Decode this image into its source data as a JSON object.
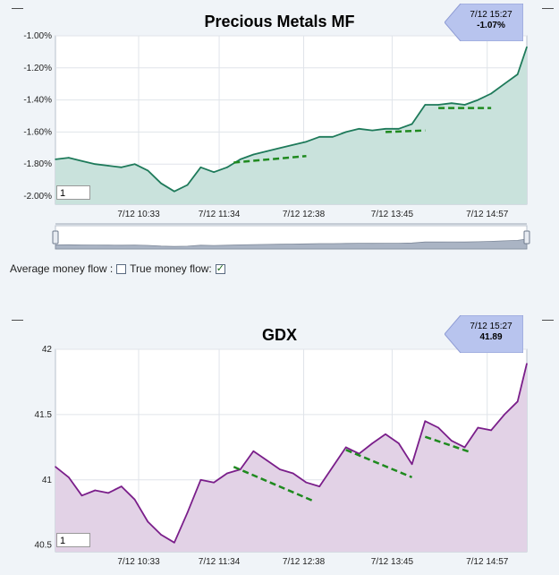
{
  "panel1": {
    "minimize_label": "—",
    "maximize_label": "—",
    "title": "Precious Metals MF",
    "callout_time": "7/12 15:27",
    "callout_value": "-1.07%",
    "zoom_value": "1"
  },
  "panel2": {
    "minimize_label": "—",
    "maximize_label": "—",
    "title": "GDX",
    "callout_time": "7/12 15:27",
    "callout_value": "41.89",
    "zoom_value": "1"
  },
  "flow_options": {
    "average_label": "Average money flow :",
    "average_checked": false,
    "true_label": "True money flow:",
    "true_checked": true
  },
  "colors": {
    "mf_line": "#1e7a5a",
    "mf_fill": "#c9e2dc",
    "gdx_line": "#7a1e8a",
    "gdx_fill": "#e2d2e6",
    "trend": "#1f8a1f",
    "callout": "#b8c4ee"
  },
  "chart_data": [
    {
      "type": "area",
      "title": "Precious Metals MF",
      "x_ticks": [
        "7/12 10:33",
        "7/12 11:34",
        "7/12 12:38",
        "7/12 13:45",
        "7/12 14:57"
      ],
      "y_ticks": [
        "-1.00%",
        "-1.20%",
        "-1.40%",
        "-1.60%",
        "-1.80%",
        "-2.00%"
      ],
      "ylim": [
        -2.05,
        -1.0
      ],
      "x_range": [
        "9:30",
        "15:27"
      ],
      "grid": true,
      "series": [
        {
          "x": [
            "9:30",
            "9:40",
            "9:50",
            "10:00",
            "10:10",
            "10:20",
            "10:30",
            "10:40",
            "10:50",
            "11:00",
            "11:10",
            "11:20",
            "11:30",
            "11:40",
            "11:50",
            "12:00",
            "12:10",
            "12:20",
            "12:30",
            "12:40",
            "12:50",
            "13:00",
            "13:10",
            "13:20",
            "13:30",
            "13:40",
            "13:50",
            "14:00",
            "14:10",
            "14:20",
            "14:30",
            "14:40",
            "14:50",
            "15:00",
            "15:10",
            "15:20",
            "15:27"
          ],
          "values": [
            -1.77,
            -1.76,
            -1.78,
            -1.8,
            -1.81,
            -1.82,
            -1.8,
            -1.84,
            -1.92,
            -1.97,
            -1.93,
            -1.82,
            -1.85,
            -1.82,
            -1.77,
            -1.74,
            -1.72,
            -1.7,
            -1.68,
            -1.66,
            -1.63,
            -1.63,
            -1.6,
            -1.58,
            -1.59,
            -1.58,
            -1.58,
            -1.55,
            -1.43,
            -1.43,
            -1.42,
            -1.43,
            -1.4,
            -1.36,
            -1.3,
            -1.24,
            -1.07
          ]
        }
      ],
      "trend_lines": [
        {
          "x": [
            "11:45",
            "12:40"
          ],
          "y": [
            -1.79,
            -1.75
          ]
        },
        {
          "x": [
            "13:40",
            "14:10"
          ],
          "y": [
            -1.6,
            -1.59
          ]
        },
        {
          "x": [
            "14:20",
            "15:00"
          ],
          "y": [
            -1.45,
            -1.45
          ]
        }
      ]
    },
    {
      "type": "area",
      "title": "GDX",
      "x_ticks": [
        "7/12 10:33",
        "7/12 11:34",
        "7/12 12:38",
        "7/12 13:45",
        "7/12 14:57"
      ],
      "y_ticks": [
        "42",
        "41.5",
        "41",
        "40.5"
      ],
      "ylim": [
        40.45,
        42.0
      ],
      "x_range": [
        "9:30",
        "15:27"
      ],
      "grid": true,
      "series": [
        {
          "x": [
            "9:30",
            "9:40",
            "9:50",
            "10:00",
            "10:10",
            "10:20",
            "10:30",
            "10:40",
            "10:50",
            "11:00",
            "11:10",
            "11:20",
            "11:30",
            "11:40",
            "11:50",
            "12:00",
            "12:10",
            "12:20",
            "12:30",
            "12:40",
            "12:50",
            "13:00",
            "13:10",
            "13:20",
            "13:30",
            "13:40",
            "13:50",
            "14:00",
            "14:10",
            "14:20",
            "14:30",
            "14:40",
            "14:50",
            "15:00",
            "15:10",
            "15:20",
            "15:27"
          ],
          "values": [
            41.1,
            41.02,
            40.88,
            40.92,
            40.9,
            40.95,
            40.85,
            40.68,
            40.58,
            40.52,
            40.75,
            41.0,
            40.98,
            41.05,
            41.08,
            41.22,
            41.15,
            41.08,
            41.05,
            40.98,
            40.95,
            41.1,
            41.25,
            41.2,
            41.28,
            41.35,
            41.28,
            41.12,
            41.45,
            41.4,
            41.3,
            41.25,
            41.4,
            41.38,
            41.5,
            41.6,
            41.89
          ]
        }
      ],
      "trend_lines": [
        {
          "x": [
            "11:45",
            "12:45"
          ],
          "y": [
            41.1,
            40.84
          ]
        },
        {
          "x": [
            "13:10",
            "14:00"
          ],
          "y": [
            41.23,
            41.02
          ]
        },
        {
          "x": [
            "14:10",
            "14:45"
          ],
          "y": [
            41.33,
            41.21
          ]
        }
      ]
    }
  ]
}
